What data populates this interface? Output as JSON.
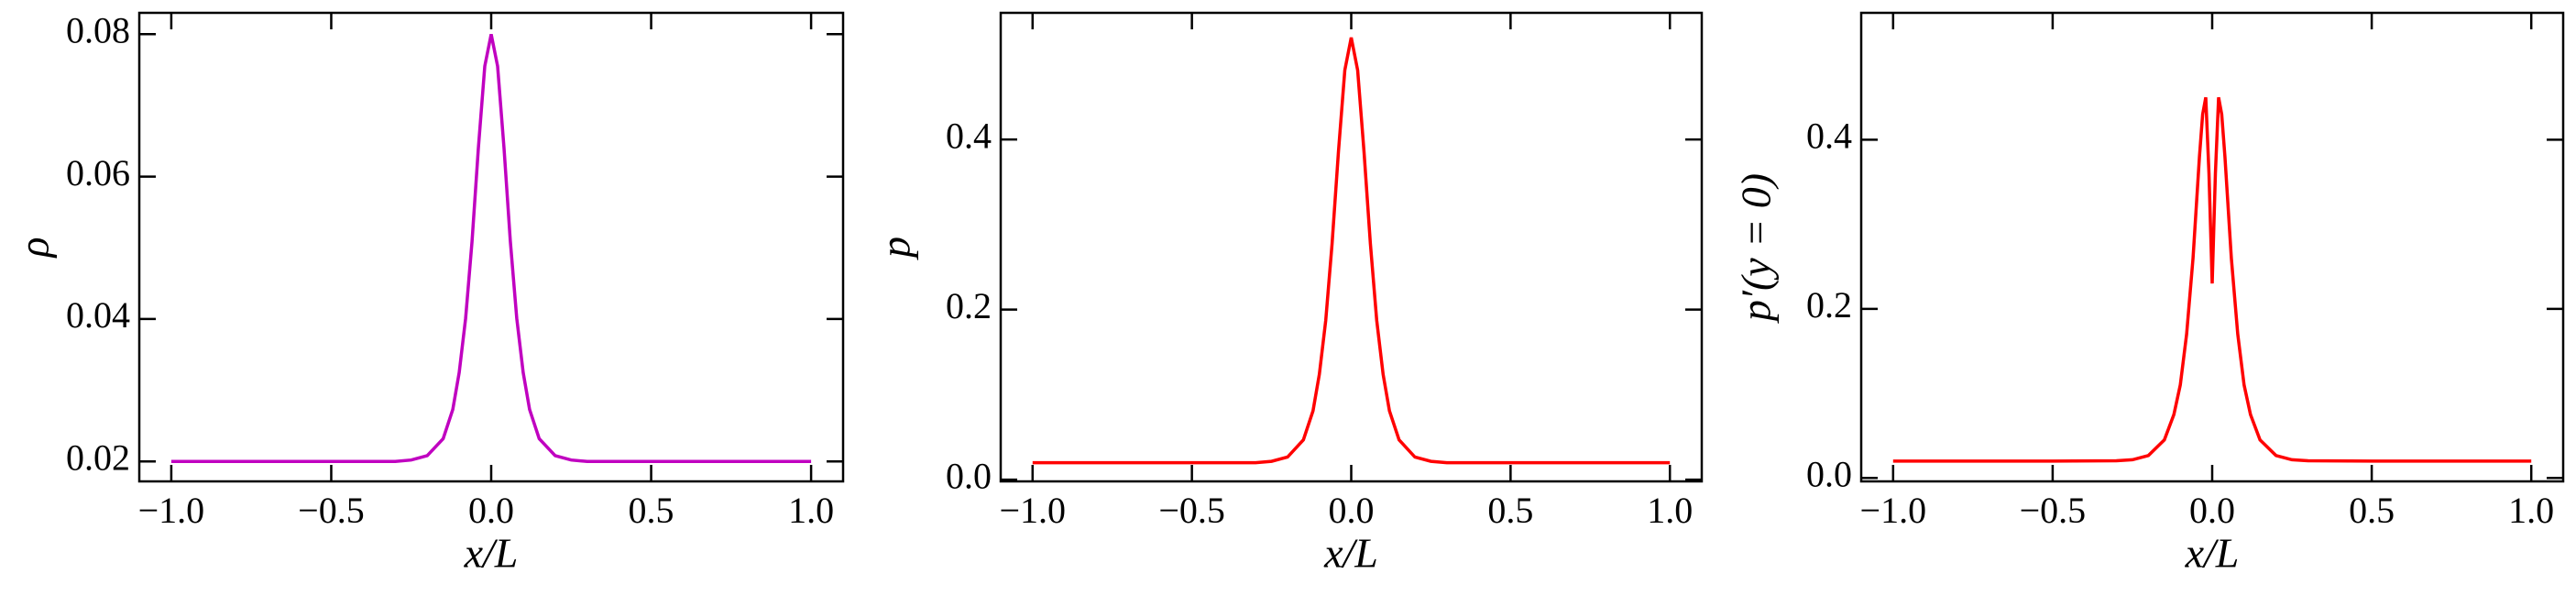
{
  "chart_data": [
    {
      "type": "line",
      "xlabel": "x/L",
      "ylabel": "ρ",
      "color": "#c000c0",
      "x": [
        -1,
        -0.5,
        -0.3,
        -0.25,
        -0.2,
        -0.15,
        -0.12,
        -0.1,
        -0.08,
        -0.06,
        -0.04,
        -0.02,
        0,
        0.02,
        0.04,
        0.06,
        0.08,
        0.1,
        0.12,
        0.15,
        0.2,
        0.25,
        0.3,
        0.5,
        1
      ],
      "values": [
        0.02,
        0.02,
        0.02,
        0.0202,
        0.0208,
        0.0232,
        0.0273,
        0.0325,
        0.0401,
        0.0509,
        0.064,
        0.0755,
        0.08,
        0.0755,
        0.064,
        0.0509,
        0.0401,
        0.0325,
        0.0273,
        0.0232,
        0.0208,
        0.0202,
        0.02,
        0.02,
        0.02
      ],
      "xlim": [
        -1.1,
        1.1
      ],
      "ylim": [
        0.0172,
        0.083
      ],
      "xticks": [
        {
          "value": -1,
          "label": "−1.0"
        },
        {
          "value": -0.5,
          "label": "−0.5"
        },
        {
          "value": 0,
          "label": "0.0"
        },
        0.5,
        {
          "value": 1,
          "label": "1.0"
        }
      ],
      "yticks": [
        0.02,
        0.04,
        0.06,
        0.08
      ]
    },
    {
      "type": "line",
      "xlabel": "x/L",
      "ylabel": "p",
      "color": "#ff0000",
      "x": [
        -1,
        -0.5,
        -0.3,
        -0.25,
        -0.2,
        -0.15,
        -0.12,
        -0.1,
        -0.08,
        -0.06,
        -0.04,
        -0.02,
        0,
        0.02,
        0.04,
        0.06,
        0.08,
        0.1,
        0.12,
        0.15,
        0.2,
        0.25,
        0.3,
        0.5,
        1
      ],
      "values": [
        0.02,
        0.02,
        0.02,
        0.0216,
        0.0266,
        0.0468,
        0.0809,
        0.1238,
        0.1875,
        0.2775,
        0.3865,
        0.4815,
        0.52,
        0.4815,
        0.3865,
        0.2775,
        0.1875,
        0.1238,
        0.0809,
        0.0468,
        0.0266,
        0.0216,
        0.02,
        0.02,
        0.02
      ],
      "xlim": [
        -1.1,
        1.1
      ],
      "ylim": [
        -0.002,
        0.549
      ],
      "xticks": [
        {
          "value": -1,
          "label": "−1.0"
        },
        {
          "value": -0.5,
          "label": "−0.5"
        },
        {
          "value": 0,
          "label": "0.0"
        },
        0.5,
        {
          "value": 1,
          "label": "1.0"
        }
      ],
      "yticks": [
        {
          "value": 0,
          "label": "0.0"
        },
        0.2,
        0.4
      ]
    },
    {
      "type": "line",
      "xlabel": "x/L",
      "ylabel": "p′(y = 0)",
      "color": "#ff0000",
      "x": [
        -1,
        -0.5,
        -0.3,
        -0.25,
        -0.2,
        -0.15,
        -0.12,
        -0.1,
        -0.08,
        -0.06,
        -0.04,
        -0.03,
        -0.02,
        -0.01,
        0,
        0.01,
        0.02,
        0.03,
        0.04,
        0.06,
        0.08,
        0.1,
        0.12,
        0.15,
        0.2,
        0.25,
        0.3,
        0.5,
        1
      ],
      "values": [
        0.02,
        0.02,
        0.0204,
        0.0216,
        0.0266,
        0.045,
        0.075,
        0.11,
        0.17,
        0.26,
        0.38,
        0.43,
        0.45,
        0.36,
        0.23,
        0.36,
        0.45,
        0.43,
        0.38,
        0.26,
        0.17,
        0.11,
        0.075,
        0.045,
        0.0266,
        0.0216,
        0.0204,
        0.02,
        0.02
      ],
      "xlim": [
        -1.1,
        1.1
      ],
      "ylim": [
        -0.004,
        0.55
      ],
      "xticks": [
        {
          "value": -1,
          "label": "−1.0"
        },
        {
          "value": -0.5,
          "label": "−0.5"
        },
        {
          "value": 0,
          "label": "0.0"
        },
        0.5,
        {
          "value": 1,
          "label": "1.0"
        }
      ],
      "yticks": [
        {
          "value": 0,
          "label": "0.0"
        },
        0.2,
        0.4
      ]
    }
  ]
}
